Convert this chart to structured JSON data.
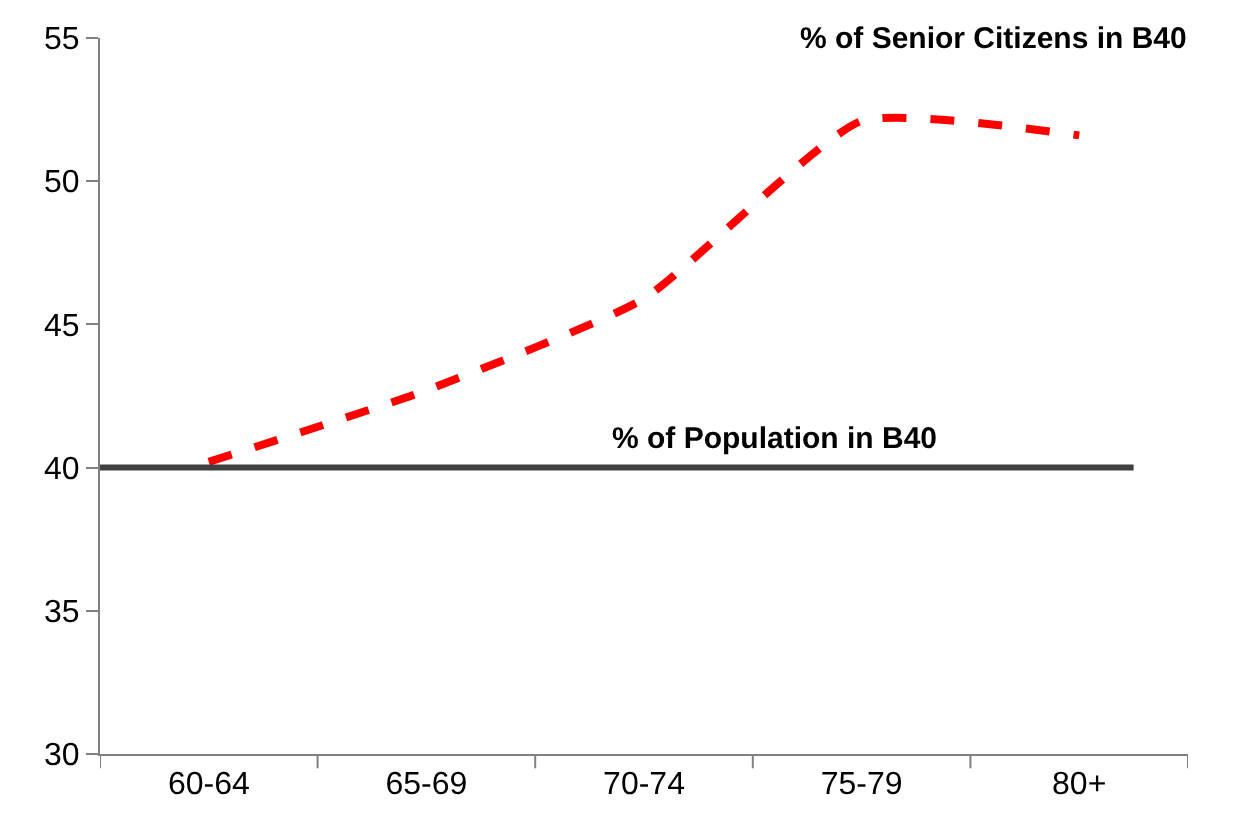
{
  "chart_data": {
    "type": "line",
    "categories": [
      "60-64",
      "65-69",
      "70-74",
      "75-79",
      "80+"
    ],
    "series": [
      {
        "name": "% of Senior Citizens in B40",
        "color": "#ff0000",
        "values": [
          40.2,
          42.7,
          45.9,
          52.1,
          51.6
        ]
      }
    ],
    "ylim": [
      30,
      55
    ],
    "yticks": [
      30,
      35,
      40,
      45,
      50,
      55
    ],
    "marker": "none",
    "line_style": "dashed",
    "ref_lines": [
      {
        "axis": "y",
        "value": 40,
        "label": "% of Population in B40",
        "color": "#404040"
      }
    ]
  }
}
